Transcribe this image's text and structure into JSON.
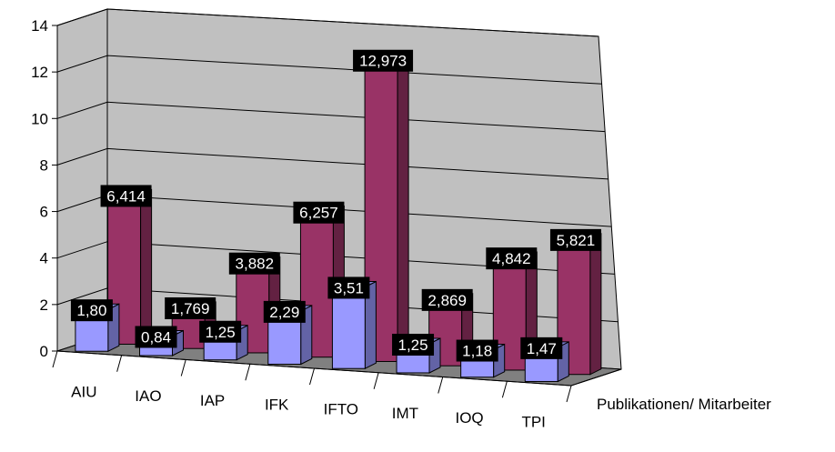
{
  "chart_data": {
    "type": "bar",
    "subtype": "3d-clustered-column",
    "categories": [
      "AIU",
      "IAO",
      "IAP",
      "IFK",
      "IFTO",
      "IMT",
      "IOQ",
      "TPI"
    ],
    "series": [
      {
        "name": "Publikationen/ Mitarbeiter",
        "values": [
          1.8,
          0.84,
          1.25,
          2.29,
          3.51,
          1.25,
          1.18,
          1.47
        ],
        "labels": [
          "1,80",
          "0,84",
          "1,25",
          "2,29",
          "3,51",
          "1,25",
          "1,18",
          "1,47"
        ],
        "color": "#9999ff"
      },
      {
        "name": "",
        "values": [
          6.414,
          1.769,
          3.882,
          6.257,
          12.973,
          2.869,
          4.842,
          5.821
        ],
        "labels": [
          "6,414",
          "1,769",
          "3,882",
          "6,257",
          "12,973",
          "2,869",
          "4,842",
          "5,821"
        ],
        "color": "#993366"
      }
    ],
    "y_ticks": [
      "0",
      "2",
      "4",
      "6",
      "8",
      "10",
      "12",
      "14"
    ],
    "ylim": [
      0,
      14
    ],
    "grid": true,
    "colors": {
      "wall": "#c0c0c0",
      "floor": "#808080",
      "label_bg": "#000000",
      "label_text": "#ffffff"
    }
  }
}
